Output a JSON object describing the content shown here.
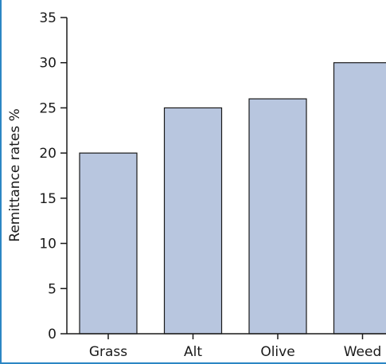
{
  "chart_data": {
    "type": "bar",
    "categories": [
      "Grass",
      "Alt",
      "Olive",
      "Weed"
    ],
    "values": [
      20,
      25,
      26,
      30
    ],
    "title": "",
    "xlabel": "",
    "ylabel": "Remittance rates %",
    "ylim": [
      0,
      35
    ],
    "yticks": [
      0,
      5,
      10,
      15,
      20,
      25,
      30,
      35
    ],
    "bar_color": "#b8c6df",
    "bar_edge_color": "#1a1a1a",
    "grid": false,
    "frame_color": "#2c86c4"
  }
}
